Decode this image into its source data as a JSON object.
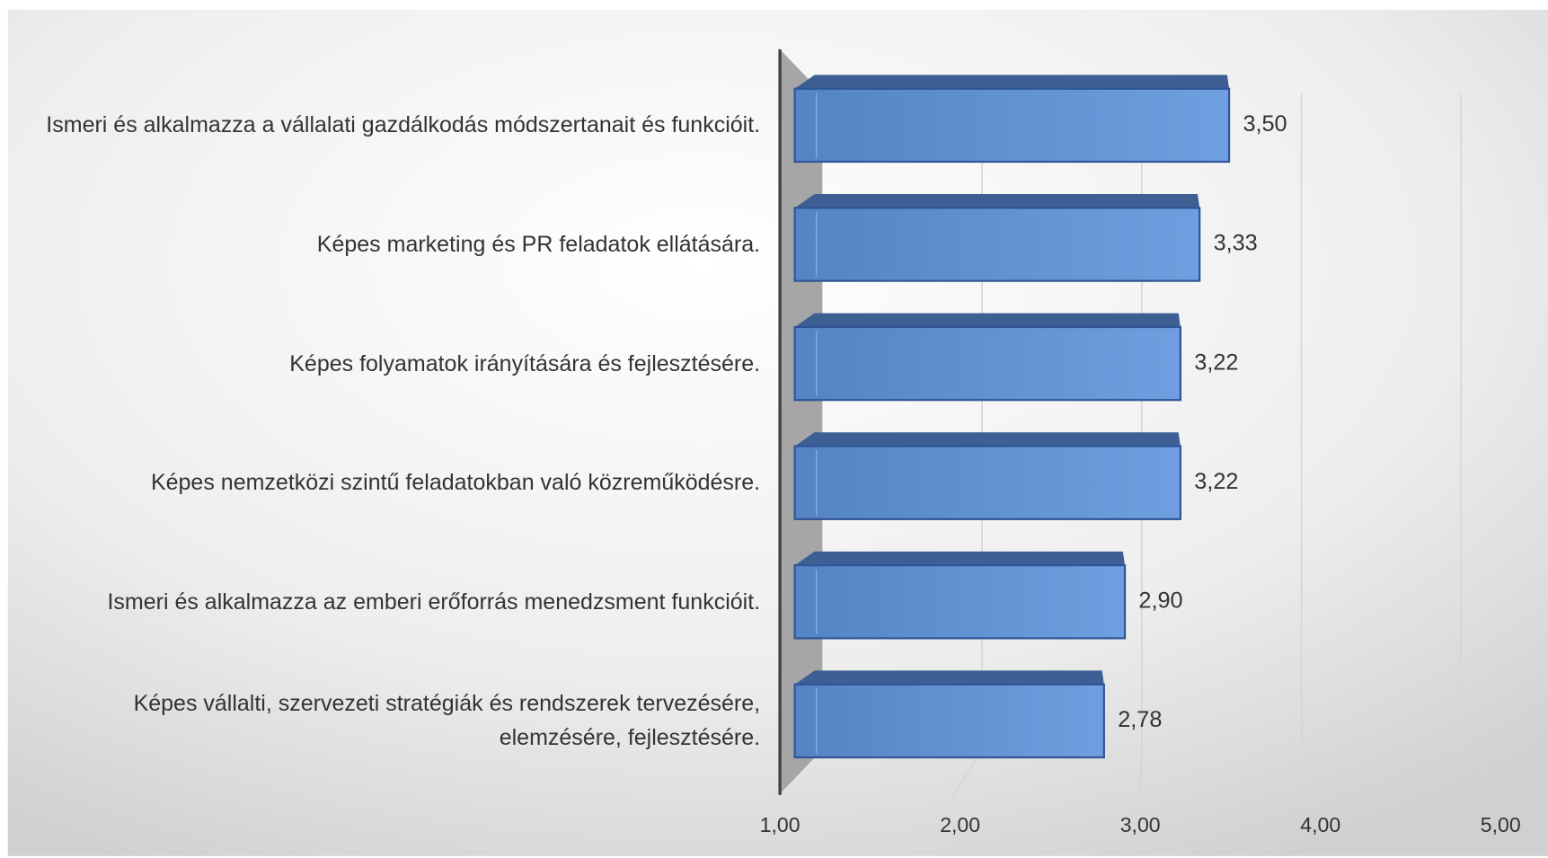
{
  "chart_data": {
    "type": "bar3d",
    "orientation": "horizontal",
    "categories": [
      "Ismeri és alkalmazza a vállalati gazdálkodás módszertanait és funkcióit.",
      "Képes marketing és PR feladatok ellátására.",
      "Képes folyamatok irányítására és fejlesztésére.",
      "Képes nemzetközi szintű feladatokban való közreműködésre.",
      "Ismeri és alkalmazza az emberi erőforrás menedzsment funkcióit.",
      "Képes vállalti, szervezeti stratégiák és rendszerek tervezésére, elemzésére, fejlesztésére."
    ],
    "values": [
      3.5,
      3.33,
      3.22,
      3.22,
      2.9,
      2.78
    ],
    "value_labels": [
      "3,50",
      "3,33",
      "3,22",
      "3,22",
      "2,90",
      "2,78"
    ],
    "color": "#5b8fd4",
    "xlim": [
      1,
      5
    ],
    "xticks": [
      {
        "value": 1,
        "label": "1,00"
      },
      {
        "value": 2,
        "label": "2,00"
      },
      {
        "value": 3,
        "label": "3,00"
      },
      {
        "value": 4,
        "label": "4,00"
      },
      {
        "value": 5,
        "label": "5,00"
      }
    ],
    "grid": true
  }
}
